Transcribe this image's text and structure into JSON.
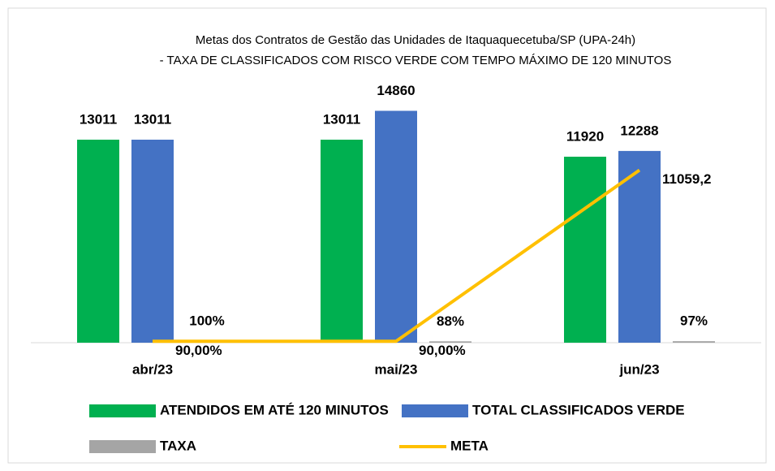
{
  "chart_data": {
    "type": "bar",
    "title": [
      "Metas dos Contratos de Gestão das Unidades de Itaquaquecetuba/SP (UPA-24h)",
      "- TAXA DE CLASSIFICADOS COM RISCO VERDE COM TEMPO MÁXIMO DE 120 MINUTOS"
    ],
    "categories": [
      "abr/23",
      "mai/23",
      "jun/23"
    ],
    "ylim": [
      0,
      16000
    ],
    "series": [
      {
        "name": "ATENDIDOS EM ATÉ 120 MINUTOS",
        "color": "#00b050",
        "type": "bar",
        "values": [
          13011,
          13011,
          11920
        ]
      },
      {
        "name": "TOTAL CLASSIFICADOS VERDE",
        "color": "#4472c4",
        "type": "bar",
        "values": [
          13011,
          14860,
          12288
        ]
      },
      {
        "name": "TAXA",
        "color": "#a5a5a5",
        "type": "bar",
        "values": [
          100,
          88,
          97
        ],
        "value_labels": [
          "100%",
          "88%",
          "97%"
        ]
      },
      {
        "name": "META",
        "color": "#ffc000",
        "type": "line",
        "values": [
          90,
          90,
          11059.2
        ],
        "value_labels": [
          "90,00%",
          "90,00%",
          "11059,2"
        ]
      }
    ]
  }
}
